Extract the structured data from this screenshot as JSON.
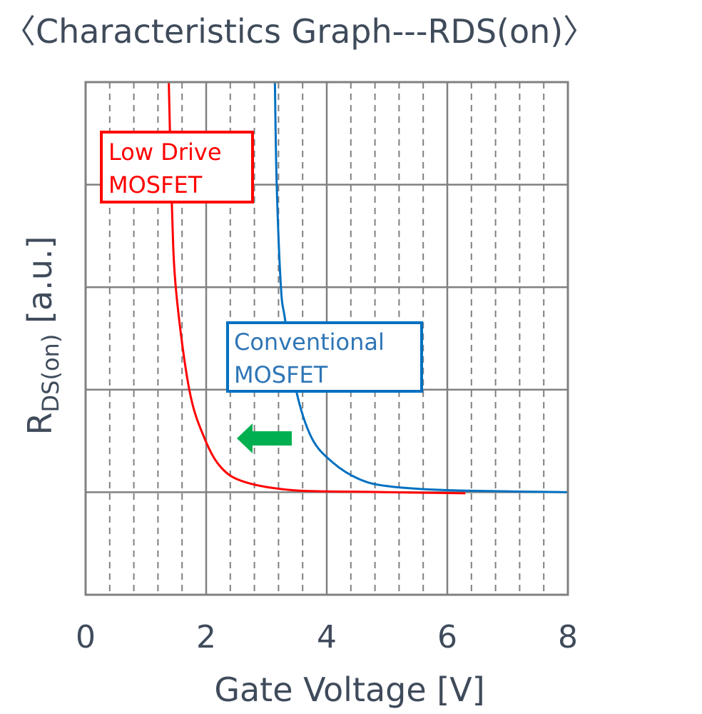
{
  "chart_data": {
    "type": "line",
    "title": "〈Characteristics Graph---RDS(on)〉",
    "xlabel": "Gate Voltage [V]",
    "ylabel": {
      "main": "R",
      "sub": "DS(on)",
      "unit": " [a.u.]"
    },
    "xlim": [
      0,
      8
    ],
    "ylim": [
      0,
      5
    ],
    "xticks": [
      0,
      2,
      4,
      6,
      8
    ],
    "xtick_labels": [
      "0",
      "2",
      "4",
      "6",
      "8"
    ],
    "x_minor_step": 0.4,
    "y_gridlines": [
      1,
      2,
      3,
      4
    ],
    "y_tick_labels": false,
    "grid": true,
    "series": [
      {
        "name": "Low Drive MOSFET",
        "color": "#ff0000",
        "x": [
          1.38,
          1.43,
          1.5,
          1.72,
          1.97,
          2.25,
          2.64,
          3.43,
          4.5,
          6.3
        ],
        "y": [
          5.0,
          3.82,
          2.97,
          2.0,
          1.53,
          1.24,
          1.1,
          1.02,
          1.005,
          0.99
        ]
      },
      {
        "name": "Conventional MOSFET",
        "color": "#0070c0",
        "x": [
          3.14,
          3.17,
          3.24,
          3.31,
          3.49,
          3.75,
          4.1,
          4.53,
          5.0,
          6.0,
          8.0
        ],
        "y": [
          5.0,
          4.0,
          3.0,
          2.68,
          2.0,
          1.53,
          1.29,
          1.13,
          1.06,
          1.02,
          1.0
        ]
      }
    ],
    "annotations": [
      {
        "text": [
          "Low Drive",
          "MOSFET"
        ],
        "color": "#ff0000"
      },
      {
        "text": [
          "Conventional",
          "MOSFET"
        ],
        "color": "#0070c0"
      },
      {
        "type": "arrow-left",
        "color": "#00b050"
      }
    ],
    "colors": {
      "grid": "#808080",
      "text": "#3f4b5b"
    }
  }
}
